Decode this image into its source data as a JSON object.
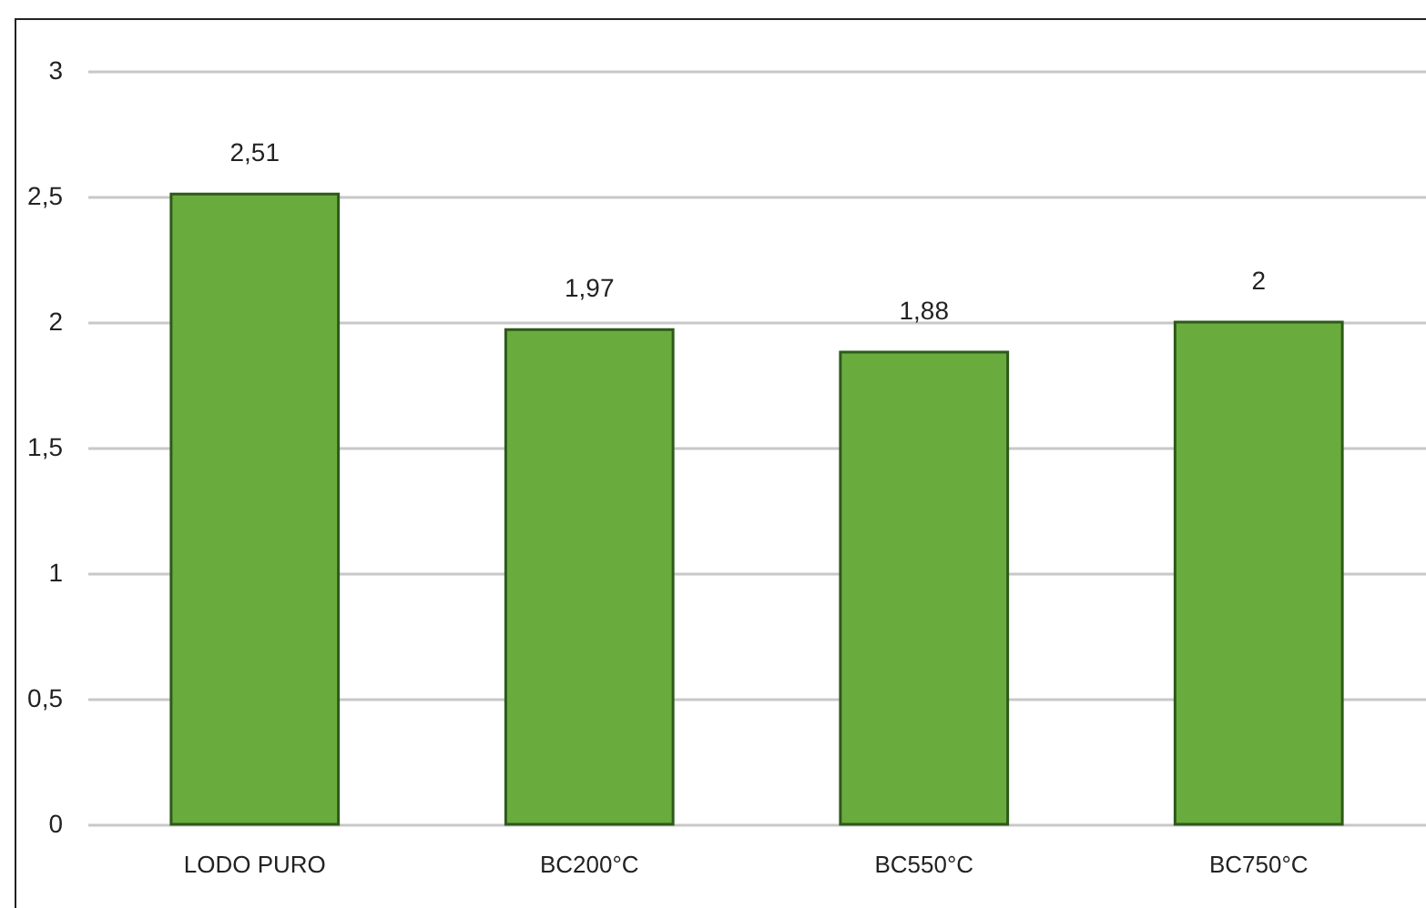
{
  "chart_data": {
    "type": "bar",
    "categories": [
      "LODO PURO",
      "BC200°C",
      "BC550°C",
      "BC750°C"
    ],
    "values": [
      2.51,
      1.97,
      1.88,
      2
    ],
    "color": "#6aab3e",
    "value_labels": [
      "2,51",
      "1,97",
      "1,88",
      "2"
    ],
    "ylim": [
      0,
      3
    ],
    "yticks": [
      0,
      {
        "value": 0.5,
        "label": "0,5"
      },
      1,
      {
        "value": 1.5,
        "label": "1,5"
      },
      2,
      {
        "value": 2.5,
        "label": "2,5"
      },
      3
    ],
    "grid": "y"
  }
}
